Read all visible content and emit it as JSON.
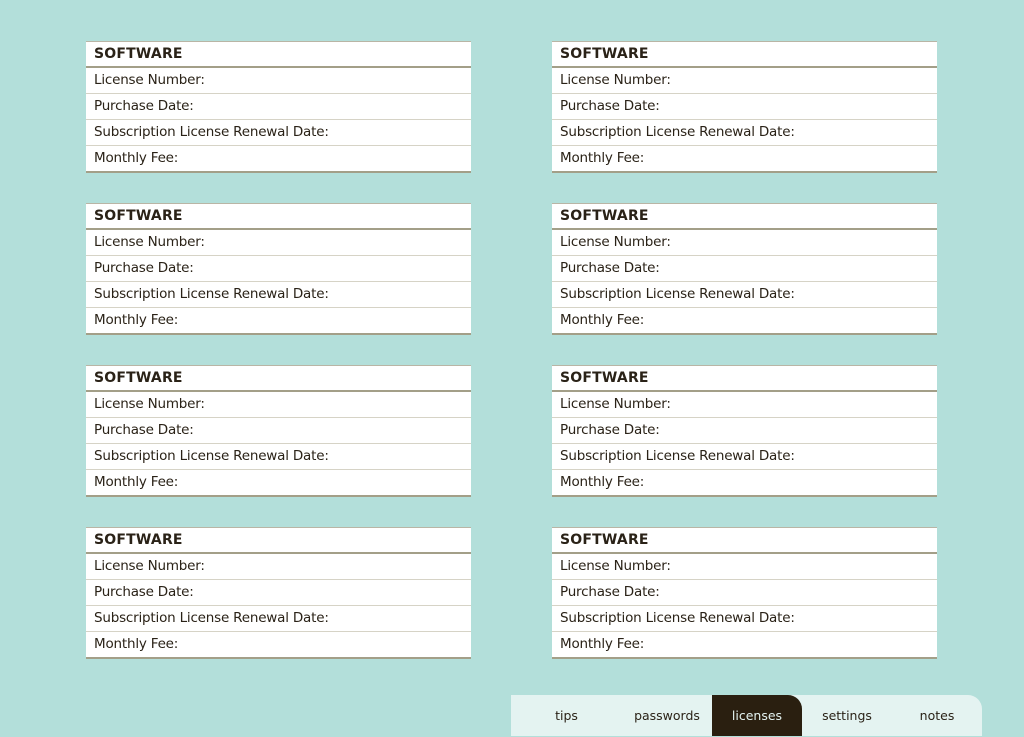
{
  "cards": [
    {
      "title": "SOFTWARE",
      "fields": [
        "License Number:",
        "Purchase Date:",
        "Subscription License Renewal Date:",
        "Monthly Fee:"
      ]
    },
    {
      "title": "SOFTWARE",
      "fields": [
        "License Number:",
        "Purchase Date:",
        "Subscription License Renewal Date:",
        "Monthly Fee:"
      ]
    },
    {
      "title": "SOFTWARE",
      "fields": [
        "License Number:",
        "Purchase Date:",
        "Subscription License Renewal Date:",
        "Monthly Fee:"
      ]
    },
    {
      "title": "SOFTWARE",
      "fields": [
        "License Number:",
        "Purchase Date:",
        "Subscription License Renewal Date:",
        "Monthly Fee:"
      ]
    },
    {
      "title": "SOFTWARE",
      "fields": [
        "License Number:",
        "Purchase Date:",
        "Subscription License Renewal Date:",
        "Monthly Fee:"
      ]
    },
    {
      "title": "SOFTWARE",
      "fields": [
        "License Number:",
        "Purchase Date:",
        "Subscription License Renewal Date:",
        "Monthly Fee:"
      ]
    },
    {
      "title": "SOFTWARE",
      "fields": [
        "License Number:",
        "Purchase Date:",
        "Subscription License Renewal Date:",
        "Monthly Fee:"
      ]
    },
    {
      "title": "SOFTWARE",
      "fields": [
        "License Number:",
        "Purchase Date:",
        "Subscription License Renewal Date:",
        "Monthly Fee:"
      ]
    }
  ],
  "tabs": [
    {
      "label": "tips",
      "active": false
    },
    {
      "label": "passwords",
      "active": false
    },
    {
      "label": "licenses",
      "active": true
    },
    {
      "label": "settings",
      "active": false
    },
    {
      "label": "notes",
      "active": false
    }
  ],
  "colors": {
    "background": "#b3dfda",
    "tab_bar": "#e4f3f1",
    "active_tab": "#2a1f10",
    "rule": "#a39f88"
  }
}
